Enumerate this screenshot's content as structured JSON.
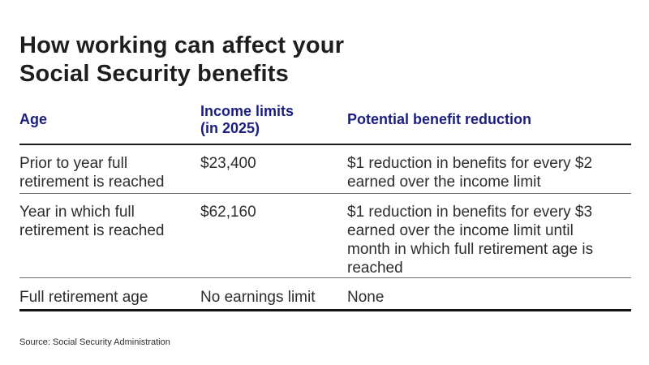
{
  "title": {
    "line1": "How working can affect your",
    "line2": "Social Security benefits"
  },
  "source": "Source: Social Security Administration",
  "colors": {
    "background": "#ffffff",
    "title_text": "#1e1e1e",
    "header_text": "#1a1e82",
    "body_text": "#2d2d2d",
    "rule_heavy": "#1a1a1a",
    "rule_light": "#6f6f6f"
  },
  "chart_data": {
    "type": "table",
    "title": "How working can affect your Social Security benefits",
    "columns": [
      "Age",
      "Income limits (in 2025)",
      "Potential benefit reduction"
    ],
    "header": {
      "col1": "Age",
      "col2": "Income limits\n(in 2025)",
      "col3": "Potential benefit reduction"
    },
    "rows": [
      {
        "age": "Prior to year full retirement is reached",
        "income_limit": "$23,400",
        "reduction": "$1 reduction in benefits for every $2 earned over the income limit"
      },
      {
        "age": "Year in which full retirement is reached",
        "income_limit": "$62,160",
        "reduction": "$1 reduction in benefits for every $3 earned over the income limit until month in which full retirement age is reached"
      },
      {
        "age": "Full retirement age",
        "income_limit": "No earnings limit",
        "reduction": "None"
      }
    ],
    "source": "Source: Social Security Administration"
  }
}
